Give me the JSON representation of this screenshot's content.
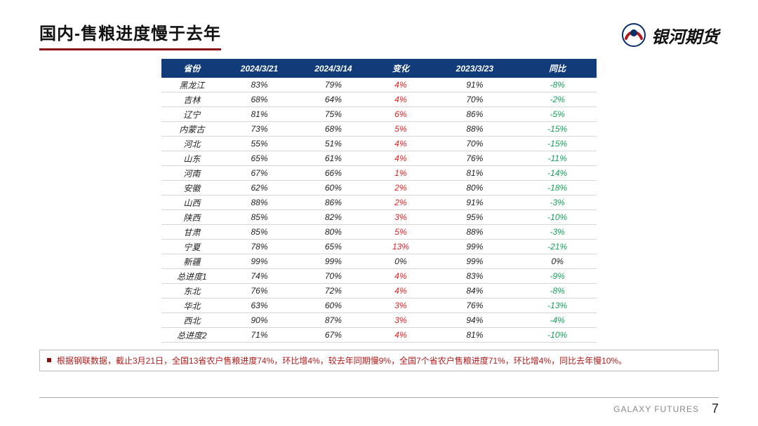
{
  "header": {
    "title_prefix": "国内",
    "title_rest": "-售粮进度慢于去年",
    "logo_text": "银河期货"
  },
  "colors": {
    "title_underline": "#8a1010",
    "table_header_bg": "#123b7a",
    "table_header_fg": "#ffffff",
    "pos": "#d22",
    "neg": "#15a05a",
    "note_fg": "#b01b1b",
    "row_border": "#d6d6d6"
  },
  "table": {
    "columns": [
      "省份",
      "2024/3/21",
      "2024/3/14",
      "变化",
      "2023/3/23",
      "同比"
    ],
    "rows": [
      {
        "prov": "黑龙江",
        "d1": "83%",
        "d2": "79%",
        "chg": "4%",
        "chg_sign": "pos",
        "d3": "91%",
        "yoy": "-8%",
        "yoy_sign": "neg"
      },
      {
        "prov": "吉林",
        "d1": "68%",
        "d2": "64%",
        "chg": "4%",
        "chg_sign": "pos",
        "d3": "70%",
        "yoy": "-2%",
        "yoy_sign": "neg"
      },
      {
        "prov": "辽宁",
        "d1": "81%",
        "d2": "75%",
        "chg": "6%",
        "chg_sign": "pos",
        "d3": "86%",
        "yoy": "-5%",
        "yoy_sign": "neg"
      },
      {
        "prov": "内蒙古",
        "d1": "73%",
        "d2": "68%",
        "chg": "5%",
        "chg_sign": "pos",
        "d3": "88%",
        "yoy": "-15%",
        "yoy_sign": "neg"
      },
      {
        "prov": "河北",
        "d1": "55%",
        "d2": "51%",
        "chg": "4%",
        "chg_sign": "pos",
        "d3": "70%",
        "yoy": "-15%",
        "yoy_sign": "neg"
      },
      {
        "prov": "山东",
        "d1": "65%",
        "d2": "61%",
        "chg": "4%",
        "chg_sign": "pos",
        "d3": "76%",
        "yoy": "-11%",
        "yoy_sign": "neg"
      },
      {
        "prov": "河南",
        "d1": "67%",
        "d2": "66%",
        "chg": "1%",
        "chg_sign": "pos",
        "d3": "81%",
        "yoy": "-14%",
        "yoy_sign": "neg"
      },
      {
        "prov": "安徽",
        "d1": "62%",
        "d2": "60%",
        "chg": "2%",
        "chg_sign": "pos",
        "d3": "80%",
        "yoy": "-18%",
        "yoy_sign": "neg"
      },
      {
        "prov": "山西",
        "d1": "88%",
        "d2": "86%",
        "chg": "2%",
        "chg_sign": "pos",
        "d3": "91%",
        "yoy": "-3%",
        "yoy_sign": "neg"
      },
      {
        "prov": "陕西",
        "d1": "85%",
        "d2": "82%",
        "chg": "3%",
        "chg_sign": "pos",
        "d3": "95%",
        "yoy": "-10%",
        "yoy_sign": "neg"
      },
      {
        "prov": "甘肃",
        "d1": "85%",
        "d2": "80%",
        "chg": "5%",
        "chg_sign": "pos",
        "d3": "88%",
        "yoy": "-3%",
        "yoy_sign": "neg"
      },
      {
        "prov": "宁夏",
        "d1": "78%",
        "d2": "65%",
        "chg": "13%",
        "chg_sign": "pos",
        "d3": "99%",
        "yoy": "-21%",
        "yoy_sign": "neg"
      },
      {
        "prov": "新疆",
        "d1": "99%",
        "d2": "99%",
        "chg": "0%",
        "chg_sign": "zero",
        "d3": "99%",
        "yoy": "0%",
        "yoy_sign": "zero"
      },
      {
        "prov": "总进度1",
        "d1": "74%",
        "d2": "70%",
        "chg": "4%",
        "chg_sign": "pos",
        "d3": "83%",
        "yoy": "-9%",
        "yoy_sign": "neg"
      },
      {
        "prov": "东北",
        "d1": "76%",
        "d2": "72%",
        "chg": "4%",
        "chg_sign": "pos",
        "d3": "84%",
        "yoy": "-8%",
        "yoy_sign": "neg"
      },
      {
        "prov": "华北",
        "d1": "63%",
        "d2": "60%",
        "chg": "3%",
        "chg_sign": "pos",
        "d3": "76%",
        "yoy": "-13%",
        "yoy_sign": "neg"
      },
      {
        "prov": "西北",
        "d1": "90%",
        "d2": "87%",
        "chg": "3%",
        "chg_sign": "pos",
        "d3": "94%",
        "yoy": "-4%",
        "yoy_sign": "neg"
      },
      {
        "prov": "总进度2",
        "d1": "71%",
        "d2": "67%",
        "chg": "4%",
        "chg_sign": "pos",
        "d3": "81%",
        "yoy": "-10%",
        "yoy_sign": "neg"
      }
    ]
  },
  "note": "根据钢联数据，截止3月21日，全国13省农户售粮进度74%，环比增4%，较去年同期慢9%，全国7个省农户售粮进度71%，环比增4%，同比去年慢10%。",
  "footer": {
    "brand": "GALAXY FUTURES",
    "page": "7"
  }
}
